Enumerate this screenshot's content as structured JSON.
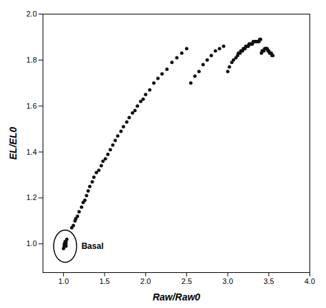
{
  "chart_data": {
    "type": "scatter",
    "xlabel": "Raw/Raw0",
    "ylabel": "EL/EL0",
    "xlim": [
      0.75,
      4.0
    ],
    "ylim": [
      0.875,
      2.0
    ],
    "xticks": [
      {
        "value": 1.0,
        "label": "1.0"
      },
      {
        "value": 1.5,
        "label": "1.5"
      },
      {
        "value": 2.0,
        "label": "2.0"
      },
      {
        "value": 2.5,
        "label": "2.5"
      },
      {
        "value": 3.0,
        "label": "3.0"
      },
      {
        "value": 3.5,
        "label": "3.5"
      },
      {
        "value": 4.0,
        "label": "4.0"
      }
    ],
    "yticks": [
      {
        "value": 1.0,
        "label": "1.0"
      },
      {
        "value": 1.2,
        "label": "1.2"
      },
      {
        "value": 1.4,
        "label": "1.4"
      },
      {
        "value": 1.6,
        "label": "1.6"
      },
      {
        "value": 1.8,
        "label": "1.8"
      },
      {
        "value": 2.0,
        "label": "2.0"
      }
    ],
    "grid": false,
    "color": "#111111",
    "annotations": [
      {
        "shape": "ellipse",
        "cx": 1.02,
        "cy": 0.99,
        "rx": 0.14,
        "ry": 0.07,
        "text": "Basal"
      }
    ],
    "x": [
      1.0,
      1.01,
      1.01,
      1.01,
      1.02,
      1.02,
      1.03,
      1.03,
      1.03,
      1.04,
      1.1,
      1.12,
      1.14,
      1.15,
      1.17,
      1.19,
      1.22,
      1.24,
      1.26,
      1.28,
      1.3,
      1.32,
      1.35,
      1.37,
      1.4,
      1.43,
      1.46,
      1.48,
      1.51,
      1.54,
      1.57,
      1.6,
      1.63,
      1.66,
      1.7,
      1.73,
      1.77,
      1.8,
      1.84,
      1.87,
      1.9,
      1.94,
      1.97,
      2.0,
      2.05,
      2.1,
      2.15,
      2.2,
      2.26,
      2.32,
      2.38,
      2.44,
      2.5,
      2.55,
      2.6,
      2.65,
      2.7,
      2.75,
      2.8,
      2.85,
      2.9,
      2.95,
      3.0,
      3.02,
      3.05,
      3.07,
      3.1,
      3.12,
      3.13,
      3.15,
      3.16,
      3.18,
      3.19,
      3.2,
      3.21,
      3.22,
      3.23,
      3.24,
      3.25,
      3.26,
      3.27,
      3.28,
      3.29,
      3.3,
      3.31,
      3.32,
      3.33,
      3.34,
      3.35,
      3.36,
      3.37,
      3.38,
      3.39,
      3.4,
      3.41,
      3.42,
      3.43,
      3.44,
      3.45,
      3.46,
      3.47,
      3.48,
      3.49,
      3.5,
      3.51,
      3.52,
      3.53,
      3.54,
      3.55
    ],
    "values": [
      0.98,
      0.99,
      0.99,
      1.0,
      1.0,
      1.01,
      0.99,
      1.0,
      1.01,
      1.02,
      1.07,
      1.08,
      1.1,
      1.11,
      1.12,
      1.14,
      1.16,
      1.18,
      1.19,
      1.21,
      1.23,
      1.25,
      1.27,
      1.29,
      1.31,
      1.32,
      1.34,
      1.36,
      1.37,
      1.39,
      1.41,
      1.43,
      1.45,
      1.47,
      1.49,
      1.51,
      1.53,
      1.55,
      1.57,
      1.58,
      1.6,
      1.62,
      1.63,
      1.65,
      1.67,
      1.7,
      1.72,
      1.74,
      1.76,
      1.79,
      1.81,
      1.83,
      1.85,
      1.7,
      1.73,
      1.75,
      1.78,
      1.8,
      1.82,
      1.84,
      1.85,
      1.86,
      1.75,
      1.77,
      1.79,
      1.8,
      1.81,
      1.82,
      1.83,
      1.83,
      1.84,
      1.84,
      1.85,
      1.85,
      1.85,
      1.86,
      1.86,
      1.86,
      1.86,
      1.87,
      1.87,
      1.87,
      1.87,
      1.87,
      1.88,
      1.88,
      1.88,
      1.88,
      1.88,
      1.88,
      1.88,
      1.88,
      1.89,
      1.89,
      1.83,
      1.84,
      1.84,
      1.84,
      1.85,
      1.85,
      1.85,
      1.85,
      1.84,
      1.84,
      1.83,
      1.83,
      1.83,
      1.82,
      1.82
    ]
  }
}
